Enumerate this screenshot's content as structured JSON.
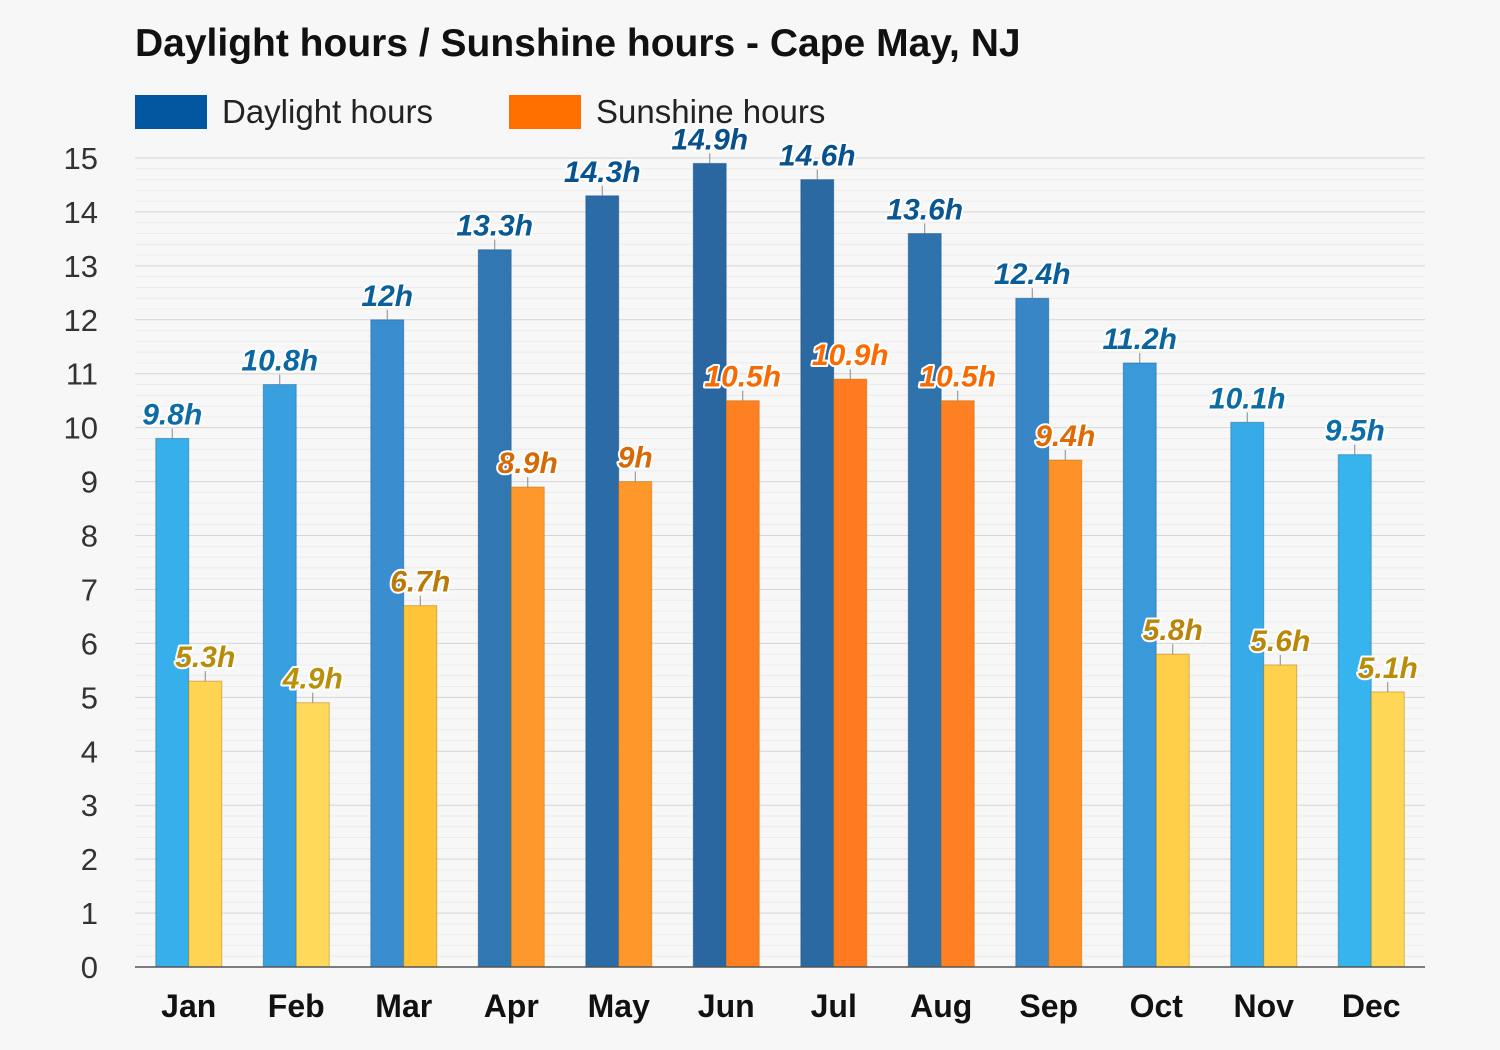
{
  "chart_data": {
    "type": "bar",
    "title": "Daylight hours / Sunshine hours - Cape May, NJ",
    "categories": [
      "Jan",
      "Feb",
      "Mar",
      "Apr",
      "May",
      "Jun",
      "Jul",
      "Aug",
      "Sep",
      "Oct",
      "Nov",
      "Dec"
    ],
    "series": [
      {
        "name": "Daylight hours",
        "legend_color": "#02569f",
        "values": [
          9.8,
          10.8,
          12,
          13.3,
          14.3,
          14.9,
          14.6,
          13.6,
          12.4,
          11.2,
          10.1,
          9.5
        ],
        "labels": [
          "9.8h",
          "10.8h",
          "12h",
          "13.3h",
          "14.3h",
          "14.9h",
          "14.6h",
          "13.6h",
          "12.4h",
          "11.2h",
          "10.1h",
          "9.5h"
        ]
      },
      {
        "name": "Sunshine hours",
        "legend_color": "#ff6f00",
        "values": [
          5.3,
          4.9,
          6.7,
          8.9,
          9.0,
          10.5,
          10.9,
          10.5,
          9.4,
          5.8,
          5.6,
          5.1
        ],
        "labels": [
          "5.3h",
          "4.9h",
          "6.7h",
          "8.9h",
          "9h",
          "10.5h",
          "10.9h",
          "10.5h",
          "9.4h",
          "5.8h",
          "5.6h",
          "5.1h"
        ]
      }
    ],
    "ylim": [
      0,
      15
    ],
    "yticks": [
      0,
      1,
      2,
      3,
      4,
      5,
      6,
      7,
      8,
      9,
      10,
      11,
      12,
      13,
      14,
      15
    ],
    "grid": true,
    "legend_position": "top-left"
  }
}
